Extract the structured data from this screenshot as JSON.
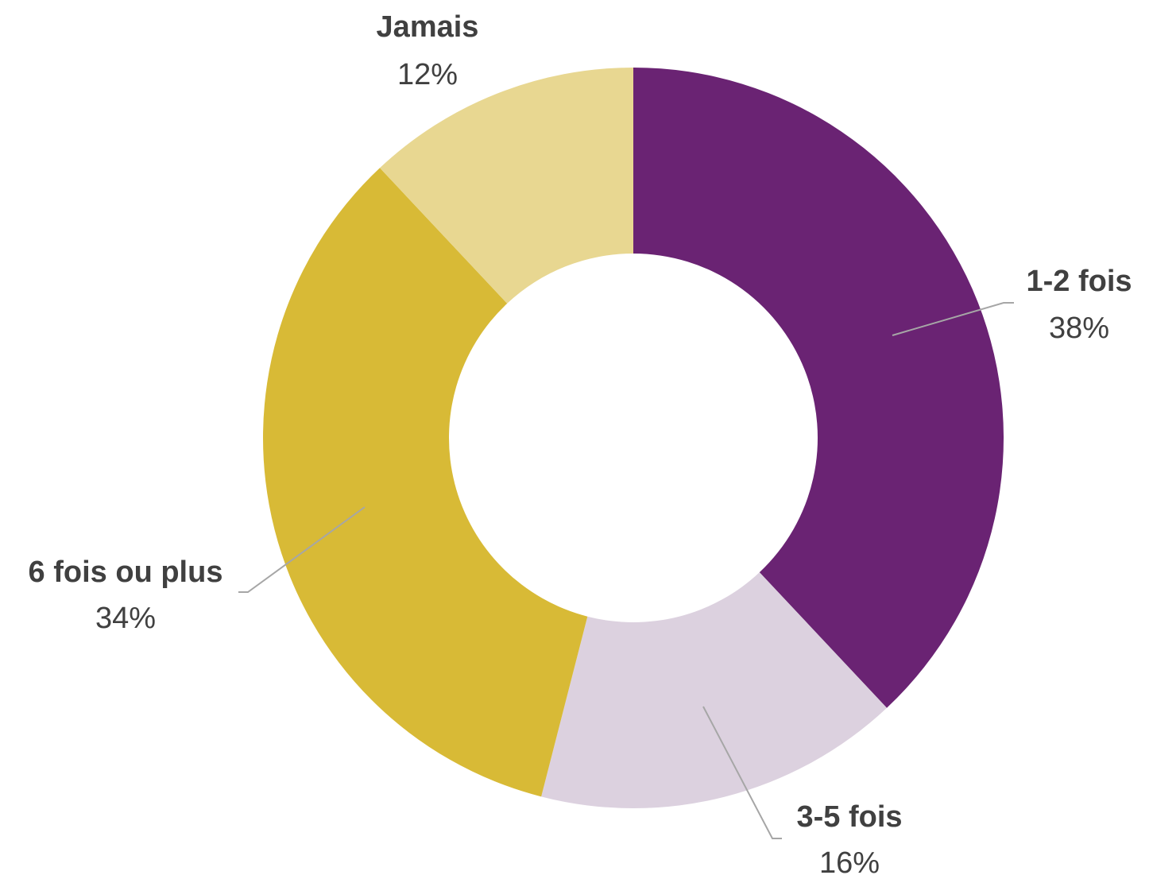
{
  "chart_data": {
    "type": "pie",
    "donut": true,
    "categories": [
      "1-2 fois",
      "3-5 fois",
      "6 fois ou plus",
      "Jamais"
    ],
    "values": [
      38,
      16,
      34,
      12
    ],
    "value_labels": [
      "38%",
      "16%",
      "34%",
      "12%"
    ],
    "colors": [
      "#6a2373",
      "#dcd1df",
      "#d8ba36",
      "#e8d791"
    ],
    "title": "",
    "legend": "none"
  }
}
